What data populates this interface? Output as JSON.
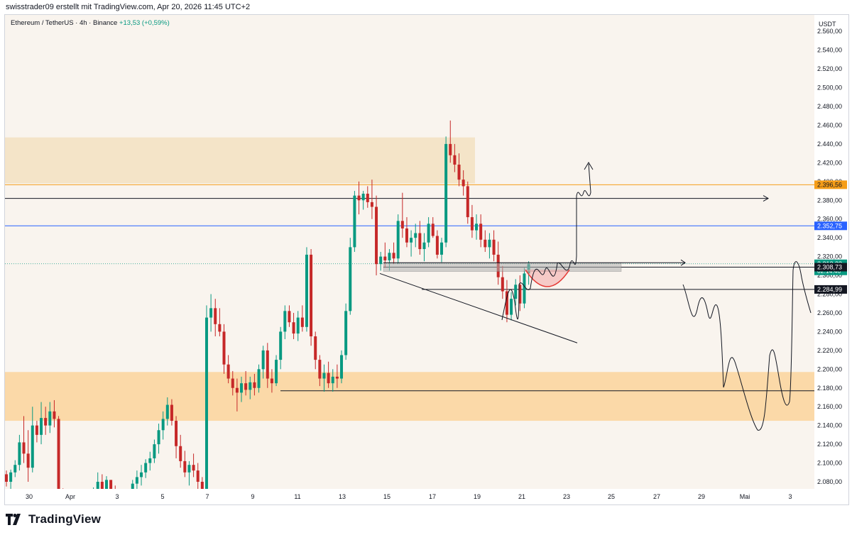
{
  "header": {
    "attribution": "swisstrader09 erstellt mit TradingView.com, Apr 20, 2026 11:45 UTC+2"
  },
  "legend": {
    "symbol": "Ethereum / TetherUS · 4h · Binance",
    "change": "+13,53 (+0,59%)"
  },
  "footer": {
    "brand": "TradingView"
  },
  "colors": {
    "up": "#089981",
    "down": "#c62828",
    "background": "#f9f4ee",
    "zone_top": "#f4e4c8",
    "zone_bottom": "#fcd39b",
    "orange_line": "#f59d19",
    "blue_line": "#2962ff"
  },
  "chart_data": {
    "type": "candlestick",
    "symbol": "ETHUSDT",
    "interval": "4h",
    "exchange": "Binance",
    "y_axis": {
      "unit": "USDT",
      "ylim": [
        2080,
        2570
      ],
      "ticks": [
        "2.560,00",
        "2.540,00",
        "2.520,00",
        "2.500,00",
        "2.480,00",
        "2.460,00",
        "2.440,00",
        "2.420,00",
        "2.400,00",
        "2.380,00",
        "2.360,00",
        "2.340,00",
        "2.320,00",
        "2.300,00",
        "2.280,00",
        "2.260,00",
        "2.240,00",
        "2.220,00",
        "2.200,00",
        "2.180,00",
        "2.160,00",
        "2.140,00",
        "2.120,00",
        "2.100,00",
        "2.080,00"
      ]
    },
    "x_axis": {
      "ticks": [
        "30",
        "Apr",
        "3",
        "5",
        "7",
        "9",
        "11",
        "13",
        "15",
        "17",
        "19",
        "21",
        "23",
        "25",
        "27",
        "29",
        "Mai",
        "3"
      ]
    },
    "price_labels": [
      {
        "text": "2.396,56",
        "value": 2396.56,
        "style": "orange"
      },
      {
        "text": "2.352,75",
        "value": 2352.75,
        "style": "blue"
      },
      {
        "text": "2.312,33",
        "sub": "02:14:46",
        "value": 2312.33,
        "style": "green"
      },
      {
        "text": "2.308,73",
        "value": 2308.73,
        "style": "black"
      },
      {
        "text": "2.284,99",
        "value": 2284.99,
        "style": "black"
      }
    ],
    "zones": [
      {
        "name": "resistance",
        "from": 2398,
        "to": 2447
      },
      {
        "name": "support",
        "from": 2145,
        "to": 2197
      },
      {
        "name": "grey",
        "from": 2304,
        "to": 2313
      }
    ],
    "levels": [
      2396.56,
      2382,
      2352.75,
      2312.33,
      2308.73,
      2284.99,
      2177
    ],
    "candles": [
      [
        2088,
        2092,
        2075,
        2080
      ],
      [
        2080,
        2093,
        2070,
        2090
      ],
      [
        2090,
        2103,
        2085,
        2098
      ],
      [
        2098,
        2130,
        2092,
        2122
      ],
      [
        2122,
        2150,
        2100,
        2110
      ],
      [
        2110,
        2135,
        2080,
        2095
      ],
      [
        2095,
        2160,
        2090,
        2140
      ],
      [
        2140,
        2145,
        2122,
        2130
      ],
      [
        2130,
        2165,
        2120,
        2148
      ],
      [
        2148,
        2160,
        2130,
        2140
      ],
      [
        2140,
        2165,
        2132,
        2155
      ],
      [
        2155,
        2167,
        2138,
        2147
      ],
      [
        2147,
        2150,
        2050,
        2065
      ],
      [
        2065,
        2073,
        2030,
        2048
      ],
      [
        2048,
        2058,
        2030,
        2038
      ],
      [
        2038,
        2060,
        2030,
        2050
      ],
      [
        2050,
        2068,
        2040,
        2060
      ],
      [
        2060,
        2070,
        2040,
        2052
      ],
      [
        2052,
        2065,
        2045,
        2058
      ],
      [
        2058,
        2072,
        2050,
        2065
      ],
      [
        2065,
        2074,
        2055,
        2068
      ],
      [
        2068,
        2090,
        2060,
        2080
      ],
      [
        2080,
        2088,
        2070,
        2072
      ],
      [
        2072,
        2086,
        2060,
        2082
      ],
      [
        2082,
        2080,
        2065,
        2070
      ],
      [
        2070,
        2076,
        2058,
        2064
      ],
      [
        2064,
        2072,
        2050,
        2058
      ],
      [
        2058,
        2066,
        2045,
        2052
      ],
      [
        2052,
        2070,
        2048,
        2065
      ],
      [
        2065,
        2082,
        2058,
        2078
      ],
      [
        2078,
        2092,
        2070,
        2085
      ],
      [
        2085,
        2098,
        2076,
        2090
      ],
      [
        2090,
        2104,
        2084,
        2100
      ],
      [
        2100,
        2112,
        2092,
        2105
      ],
      [
        2105,
        2125,
        2100,
        2120
      ],
      [
        2120,
        2142,
        2110,
        2135
      ],
      [
        2135,
        2155,
        2125,
        2147
      ],
      [
        2147,
        2170,
        2140,
        2162
      ],
      [
        2162,
        2168,
        2140,
        2145
      ],
      [
        2145,
        2150,
        2105,
        2118
      ],
      [
        2118,
        2130,
        2095,
        2102
      ],
      [
        2102,
        2113,
        2085,
        2090
      ],
      [
        2090,
        2102,
        2076,
        2098
      ],
      [
        2098,
        2110,
        2085,
        2092
      ],
      [
        2092,
        2100,
        2070,
        2080
      ],
      [
        2080,
        2085,
        2060,
        2062
      ],
      [
        2062,
        2268,
        2055,
        2255
      ],
      [
        2255,
        2280,
        2240,
        2265
      ],
      [
        2265,
        2275,
        2235,
        2248
      ],
      [
        2248,
        2265,
        2235,
        2240
      ],
      [
        2240,
        2248,
        2195,
        2205
      ],
      [
        2205,
        2215,
        2185,
        2190
      ],
      [
        2190,
        2198,
        2172,
        2180
      ],
      [
        2180,
        2190,
        2155,
        2175
      ],
      [
        2175,
        2192,
        2165,
        2185
      ],
      [
        2185,
        2198,
        2172,
        2178
      ],
      [
        2178,
        2192,
        2168,
        2186
      ],
      [
        2186,
        2195,
        2172,
        2180
      ],
      [
        2180,
        2205,
        2175,
        2200
      ],
      [
        2200,
        2225,
        2190,
        2220
      ],
      [
        2220,
        2228,
        2180,
        2190
      ],
      [
        2190,
        2200,
        2175,
        2185
      ],
      [
        2185,
        2215,
        2182,
        2210
      ],
      [
        2210,
        2245,
        2200,
        2240
      ],
      [
        2240,
        2268,
        2232,
        2262
      ],
      [
        2262,
        2268,
        2245,
        2250
      ],
      [
        2250,
        2260,
        2232,
        2238
      ],
      [
        2238,
        2262,
        2230,
        2255
      ],
      [
        2255,
        2268,
        2240,
        2245
      ],
      [
        2245,
        2330,
        2240,
        2322
      ],
      [
        2322,
        2328,
        2225,
        2235
      ],
      [
        2235,
        2240,
        2200,
        2210
      ],
      [
        2210,
        2215,
        2182,
        2190
      ],
      [
        2190,
        2205,
        2176,
        2196
      ],
      [
        2196,
        2208,
        2180,
        2185
      ],
      [
        2185,
        2200,
        2176,
        2192
      ],
      [
        2192,
        2205,
        2180,
        2190
      ],
      [
        2190,
        2220,
        2185,
        2215
      ],
      [
        2215,
        2270,
        2210,
        2262
      ],
      [
        2262,
        2340,
        2258,
        2330
      ],
      [
        2330,
        2390,
        2325,
        2385
      ],
      [
        2385,
        2400,
        2365,
        2380
      ],
      [
        2380,
        2390,
        2370,
        2387
      ],
      [
        2387,
        2395,
        2372,
        2378
      ],
      [
        2378,
        2402,
        2360,
        2373
      ],
      [
        2373,
        2385,
        2300,
        2312
      ],
      [
        2312,
        2325,
        2305,
        2320
      ],
      [
        2320,
        2335,
        2308,
        2316
      ],
      [
        2316,
        2328,
        2305,
        2324
      ],
      [
        2324,
        2335,
        2312,
        2318
      ],
      [
        2318,
        2365,
        2312,
        2358
      ],
      [
        2358,
        2388,
        2340,
        2350
      ],
      [
        2350,
        2362,
        2330,
        2335
      ],
      [
        2335,
        2348,
        2320,
        2340
      ],
      [
        2340,
        2355,
        2330,
        2345
      ],
      [
        2345,
        2358,
        2322,
        2328
      ],
      [
        2328,
        2345,
        2315,
        2335
      ],
      [
        2335,
        2362,
        2330,
        2355
      ],
      [
        2355,
        2362,
        2340,
        2342
      ],
      [
        2342,
        2348,
        2318,
        2322
      ],
      [
        2322,
        2340,
        2314,
        2335
      ],
      [
        2335,
        2448,
        2330,
        2440
      ],
      [
        2440,
        2465,
        2420,
        2428
      ],
      [
        2428,
        2440,
        2410,
        2418
      ],
      [
        2418,
        2430,
        2395,
        2402
      ],
      [
        2402,
        2412,
        2385,
        2395
      ],
      [
        2395,
        2400,
        2355,
        2362
      ],
      [
        2362,
        2375,
        2340,
        2348
      ],
      [
        2348,
        2365,
        2338,
        2355
      ],
      [
        2355,
        2365,
        2330,
        2338
      ],
      [
        2338,
        2348,
        2325,
        2330
      ],
      [
        2330,
        2345,
        2318,
        2338
      ],
      [
        2338,
        2348,
        2315,
        2322
      ],
      [
        2322,
        2336,
        2290,
        2298
      ],
      [
        2298,
        2310,
        2275,
        2283
      ],
      [
        2283,
        2295,
        2250,
        2258
      ],
      [
        2258,
        2282,
        2252,
        2275
      ],
      [
        2275,
        2296,
        2268,
        2290
      ],
      [
        2290,
        2300,
        2262,
        2270
      ],
      [
        2270,
        2308,
        2265,
        2302
      ],
      [
        2302,
        2315,
        2290,
        2312
      ]
    ]
  }
}
